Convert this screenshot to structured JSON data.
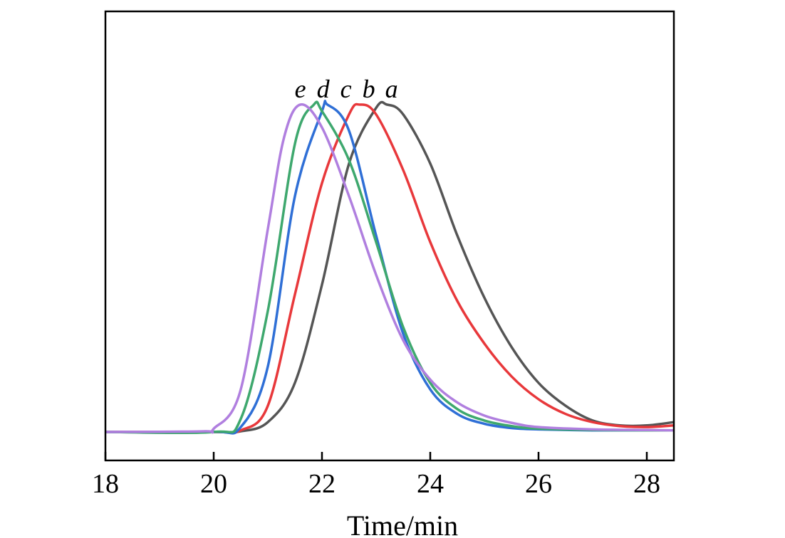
{
  "chart_data": {
    "type": "line",
    "title": "",
    "xlabel": "Time/min",
    "ylabel": "",
    "xlim": [
      18,
      28.5
    ],
    "ylim": [
      0,
      1.1
    ],
    "xticks": [
      18,
      20,
      22,
      24,
      26,
      28
    ],
    "xtick_labels": [
      "18",
      "20",
      "22",
      "24",
      "26",
      "28"
    ],
    "grid": false,
    "legend": "none",
    "series": [
      {
        "name": "a",
        "color": "#555555",
        "x": [
          18,
          20,
          20.5,
          21,
          21.5,
          22,
          22.5,
          23,
          23.2,
          23.5,
          24,
          24.5,
          25,
          25.5,
          26,
          26.5,
          27,
          27.5,
          28,
          28.5
        ],
        "y": [
          0,
          0,
          0.002,
          0.03,
          0.15,
          0.45,
          0.82,
          0.99,
          1.0,
          0.97,
          0.82,
          0.6,
          0.41,
          0.26,
          0.15,
          0.08,
          0.035,
          0.02,
          0.02,
          0.03
        ]
      },
      {
        "name": "b",
        "color": "#e8383b",
        "x": [
          18,
          20,
          20.5,
          21,
          21.5,
          22,
          22.5,
          22.7,
          23,
          23.5,
          24,
          24.5,
          25,
          25.5,
          26,
          26.5,
          27,
          27.5,
          28,
          28.5
        ],
        "y": [
          0,
          0,
          0.005,
          0.08,
          0.42,
          0.76,
          0.97,
          1.0,
          0.97,
          0.8,
          0.58,
          0.4,
          0.27,
          0.17,
          0.1,
          0.055,
          0.03,
          0.018,
          0.015,
          0.02
        ]
      },
      {
        "name": "c",
        "color": "#2f6fd6",
        "x": [
          18,
          20,
          20.5,
          21,
          21.5,
          22,
          22.1,
          22.5,
          23,
          23.5,
          24,
          24.5,
          25,
          25.5,
          26,
          27,
          28,
          28.5
        ],
        "y": [
          0,
          0,
          0.015,
          0.2,
          0.72,
          0.98,
          1.0,
          0.92,
          0.6,
          0.3,
          0.13,
          0.055,
          0.025,
          0.012,
          0.008,
          0.005,
          0.005,
          0.005
        ]
      },
      {
        "name": "d",
        "color": "#3ea86e",
        "x": [
          18,
          20,
          20.5,
          21,
          21.5,
          21.85,
          22,
          22.5,
          23,
          23.5,
          24,
          24.5,
          25,
          25.5,
          26,
          27,
          28,
          28.5
        ],
        "y": [
          0,
          0,
          0.04,
          0.37,
          0.88,
          1.0,
          0.98,
          0.83,
          0.58,
          0.32,
          0.15,
          0.07,
          0.035,
          0.018,
          0.01,
          0.006,
          0.005,
          0.005
        ]
      },
      {
        "name": "e",
        "color": "#b07fdf",
        "x": [
          18,
          19.8,
          20,
          20.5,
          21,
          21.3,
          21.6,
          22,
          22.5,
          23,
          23.5,
          24,
          24.5,
          25,
          25.5,
          26,
          27,
          28,
          28.5
        ],
        "y": [
          0,
          0.002,
          0.01,
          0.13,
          0.62,
          0.9,
          1.0,
          0.93,
          0.72,
          0.48,
          0.28,
          0.16,
          0.09,
          0.05,
          0.028,
          0.015,
          0.008,
          0.006,
          0.005
        ]
      }
    ],
    "annotations": [
      {
        "text": "e",
        "series": "e"
      },
      {
        "text": "d",
        "series": "d"
      },
      {
        "text": "c",
        "series": "c"
      },
      {
        "text": "b",
        "series": "b"
      },
      {
        "text": "a",
        "series": "a"
      }
    ]
  }
}
